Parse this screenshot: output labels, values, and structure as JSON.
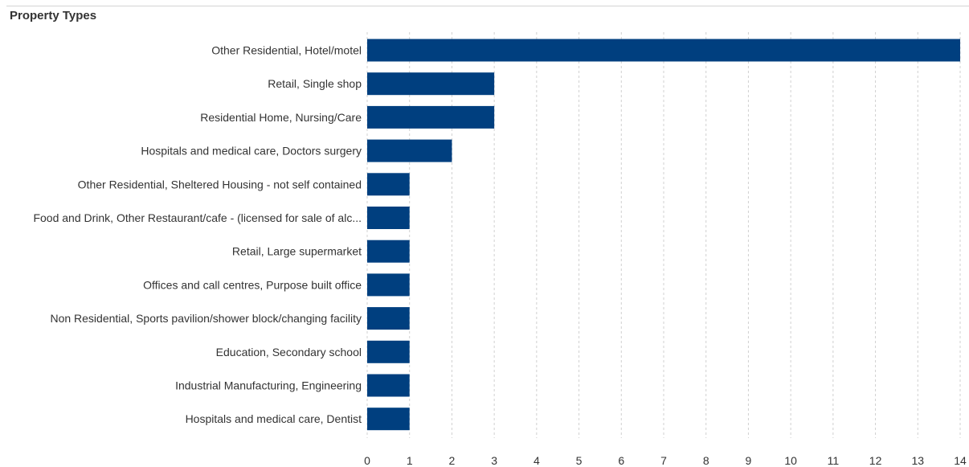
{
  "panel": {
    "title": "Property Types"
  },
  "colors": {
    "bar": "#003f7f",
    "grid": "#d0d0d0",
    "text": "#333333"
  },
  "chart_data": {
    "type": "bar",
    "orientation": "horizontal",
    "title": "Property Types",
    "xlabel": "",
    "ylabel": "",
    "xlim": [
      0,
      14
    ],
    "ticks": [
      0,
      1,
      2,
      3,
      4,
      5,
      6,
      7,
      8,
      9,
      10,
      11,
      12,
      13,
      14
    ],
    "grid": "vertical dashed",
    "categories": [
      "Other Residential, Hotel/motel",
      "Retail, Single shop",
      "Residential Home, Nursing/Care",
      "Hospitals and medical care, Doctors surgery",
      "Other Residential, Sheltered Housing - not self contained",
      "Food and Drink, Other Restaurant/cafe - (licensed for sale of alc...",
      "Retail, Large supermarket",
      "Offices and call centres, Purpose built office",
      "Non Residential, Sports pavilion/shower block/changing facility",
      "Education, Secondary school",
      "Industrial Manufacturing, Engineering",
      "Hospitals and medical care, Dentist"
    ],
    "values": [
      14,
      3,
      3,
      2,
      1,
      1,
      1,
      1,
      1,
      1,
      1,
      1
    ]
  }
}
